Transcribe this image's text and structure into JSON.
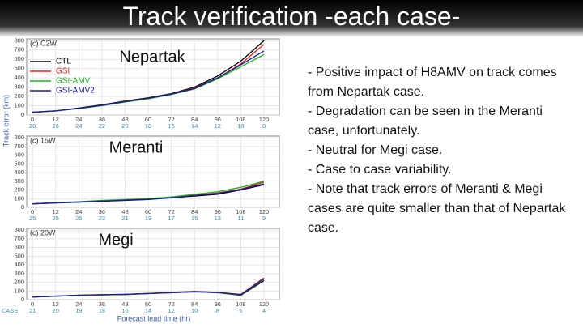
{
  "slide": {
    "title": "Track verification -each case-",
    "notes": [
      "- Positive impact of H8AMV on track comes from Nepartak case.",
      "- Degradation can be seen in the Meranti case, unfortunately.",
      "- Neutral for Megi case.",
      "- Case to case variability.",
      "- Note that track errors of Meranti & Megi cases are quite smaller than that of Nepartak case."
    ]
  },
  "chart_data": [
    {
      "type": "line",
      "title": "(c) C2W",
      "annotation": "Nepartak",
      "x": [
        0,
        12,
        24,
        36,
        48,
        60,
        72,
        84,
        96,
        108,
        120
      ],
      "xlim": [
        -3,
        128
      ],
      "xticks": [
        0,
        12,
        24,
        36,
        48,
        60,
        72,
        84,
        96,
        108,
        120
      ],
      "ylim": [
        0,
        820
      ],
      "yticks": [
        0,
        100,
        200,
        300,
        400,
        500,
        600,
        700,
        800
      ],
      "grid": true,
      "legend": "upper left",
      "counts": [
        28,
        26,
        24,
        22,
        20,
        18,
        16,
        14,
        12,
        10,
        8
      ],
      "series": [
        {
          "name": "CTL",
          "color": "#000000",
          "values": [
            30,
            45,
            75,
            110,
            150,
            185,
            230,
            300,
            420,
            580,
            800
          ]
        },
        {
          "name": "GSI",
          "color": "#e0201b",
          "values": [
            30,
            45,
            70,
            105,
            145,
            180,
            225,
            290,
            400,
            550,
            760
          ]
        },
        {
          "name": "GSI-AMV",
          "color": "#1fb51f",
          "values": [
            30,
            45,
            70,
            100,
            140,
            175,
            220,
            280,
            390,
            520,
            650
          ]
        },
        {
          "name": "GSI-AMV2",
          "color": "#1a1a9c",
          "values": [
            30,
            45,
            72,
            105,
            145,
            180,
            225,
            285,
            400,
            540,
            690
          ]
        }
      ]
    },
    {
      "type": "line",
      "title": "(c) 15W",
      "annotation": "Meranti",
      "ylabel": "Track error (km)",
      "x": [
        0,
        12,
        24,
        36,
        48,
        60,
        72,
        84,
        96,
        108,
        120
      ],
      "xlim": [
        -3,
        128
      ],
      "xticks": [
        0,
        12,
        24,
        36,
        48,
        60,
        72,
        84,
        96,
        108,
        120
      ],
      "ylim": [
        0,
        820
      ],
      "yticks": [
        0,
        100,
        200,
        300,
        400,
        500,
        600,
        700,
        800
      ],
      "grid": true,
      "counts": [
        25,
        25,
        25,
        23,
        21,
        19,
        17,
        15,
        13,
        11,
        9
      ],
      "series": [
        {
          "color": "#000000",
          "values": [
            40,
            50,
            60,
            70,
            80,
            90,
            110,
            130,
            150,
            200,
            260
          ]
        },
        {
          "color": "#e0201b",
          "values": [
            40,
            52,
            62,
            75,
            85,
            95,
            115,
            140,
            165,
            210,
            290
          ]
        },
        {
          "color": "#1fb51f",
          "values": [
            40,
            55,
            65,
            80,
            90,
            100,
            120,
            150,
            180,
            230,
            300
          ]
        },
        {
          "color": "#1a1a9c",
          "values": [
            40,
            52,
            60,
            72,
            82,
            92,
            110,
            135,
            160,
            205,
            270
          ]
        }
      ]
    },
    {
      "type": "line",
      "title": "(c) 20W",
      "annotation": "Megi",
      "xlabel": "Forecast lead time (hr)",
      "count_label": "CASE",
      "x": [
        0,
        12,
        24,
        36,
        48,
        60,
        72,
        84,
        96,
        108,
        120
      ],
      "xlim": [
        -3,
        128
      ],
      "xticks": [
        0,
        12,
        24,
        36,
        48,
        60,
        72,
        84,
        96,
        108,
        120
      ],
      "ylim": [
        0,
        820
      ],
      "yticks": [
        0,
        100,
        200,
        300,
        400,
        500,
        600,
        700,
        800
      ],
      "grid": true,
      "counts": [
        21,
        20,
        19,
        18,
        16,
        14,
        12,
        10,
        8,
        6,
        4
      ],
      "series": [
        {
          "color": "#000000",
          "values": [
            30,
            40,
            50,
            55,
            60,
            70,
            80,
            90,
            80,
            50,
            220
          ]
        },
        {
          "color": "#e0201b",
          "values": [
            30,
            42,
            52,
            58,
            62,
            72,
            85,
            95,
            85,
            60,
            250
          ]
        },
        {
          "color": "#1fb51f",
          "values": [
            30,
            40,
            50,
            56,
            60,
            70,
            82,
            92,
            82,
            55,
            235
          ]
        },
        {
          "color": "#1a1a9c",
          "values": [
            30,
            41,
            51,
            57,
            61,
            71,
            83,
            93,
            84,
            58,
            240
          ]
        }
      ]
    }
  ]
}
